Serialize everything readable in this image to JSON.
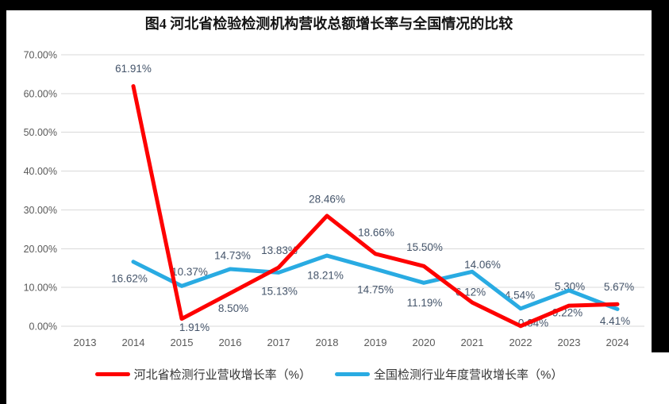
{
  "chart_data": {
    "type": "line",
    "title": "图4 河北省检验检测机构营收总额增长率与全国情况的比较",
    "categories": [
      "2013",
      "2014",
      "2015",
      "2016",
      "2017",
      "2018",
      "2019",
      "2020",
      "2021",
      "2022",
      "2023",
      "2024"
    ],
    "y_axis": {
      "min": 0,
      "max": 70,
      "step": 10,
      "ticks": [
        "0.00%",
        "10.00%",
        "20.00%",
        "30.00%",
        "40.00%",
        "50.00%",
        "60.00%",
        "70.00%"
      ]
    },
    "grid": true,
    "legend_position": "bottom",
    "colors": {
      "gridline": "#D9D9D9",
      "axis_text": "#595959",
      "data_label": "#44546A",
      "title_text": "#141414",
      "legend_text": "#333333",
      "background": "#FFFFFF",
      "border_bars": "#000000"
    },
    "series": [
      {
        "name": "河北省检测行业营收增长率（%）",
        "color": "#FE0000",
        "line_name": "series-line-hebei",
        "values": [
          null,
          61.91,
          1.91,
          8.5,
          15.13,
          28.46,
          18.66,
          15.5,
          6.12,
          0.04,
          5.3,
          5.67
        ],
        "labels": [
          null,
          "61.91%",
          "1.91%",
          "8.50%",
          "15.13%",
          "28.46%",
          "18.66%",
          "15.50%",
          "6.12%",
          "0.04%",
          "5.30%",
          "5.67%"
        ],
        "label_offsets": [
          null,
          [
            0,
            -22
          ],
          [
            16,
            11
          ],
          [
            4,
            19
          ],
          [
            1,
            30
          ],
          [
            0,
            -21
          ],
          [
            1,
            -27
          ],
          [
            1,
            -24
          ],
          [
            -2,
            -13
          ],
          [
            16,
            -4
          ],
          [
            1,
            -24
          ],
          [
            2,
            -22
          ]
        ]
      },
      {
        "name": "全国检测行业年度营收增长率（%）",
        "color": "#29ABE2",
        "line_name": "series-line-national",
        "values": [
          null,
          16.62,
          10.37,
          14.73,
          13.83,
          18.21,
          14.75,
          11.19,
          14.06,
          4.54,
          9.22,
          4.41
        ],
        "labels": [
          null,
          "16.62%",
          "10.37%",
          "14.73%",
          "13.83%",
          "18.21%",
          "14.75%",
          "11.19%",
          "14.06%",
          "4.54%",
          "9.22%",
          "4.41%"
        ],
        "label_offsets": [
          null,
          [
            -5,
            21
          ],
          [
            10,
            -18
          ],
          [
            3,
            -17
          ],
          [
            1,
            -28
          ],
          [
            -2,
            25
          ],
          [
            0,
            26
          ],
          [
            1,
            25
          ],
          [
            13,
            -9
          ],
          [
            -1,
            -17
          ],
          [
            -2,
            28
          ],
          [
            -3,
            15
          ]
        ]
      }
    ]
  }
}
